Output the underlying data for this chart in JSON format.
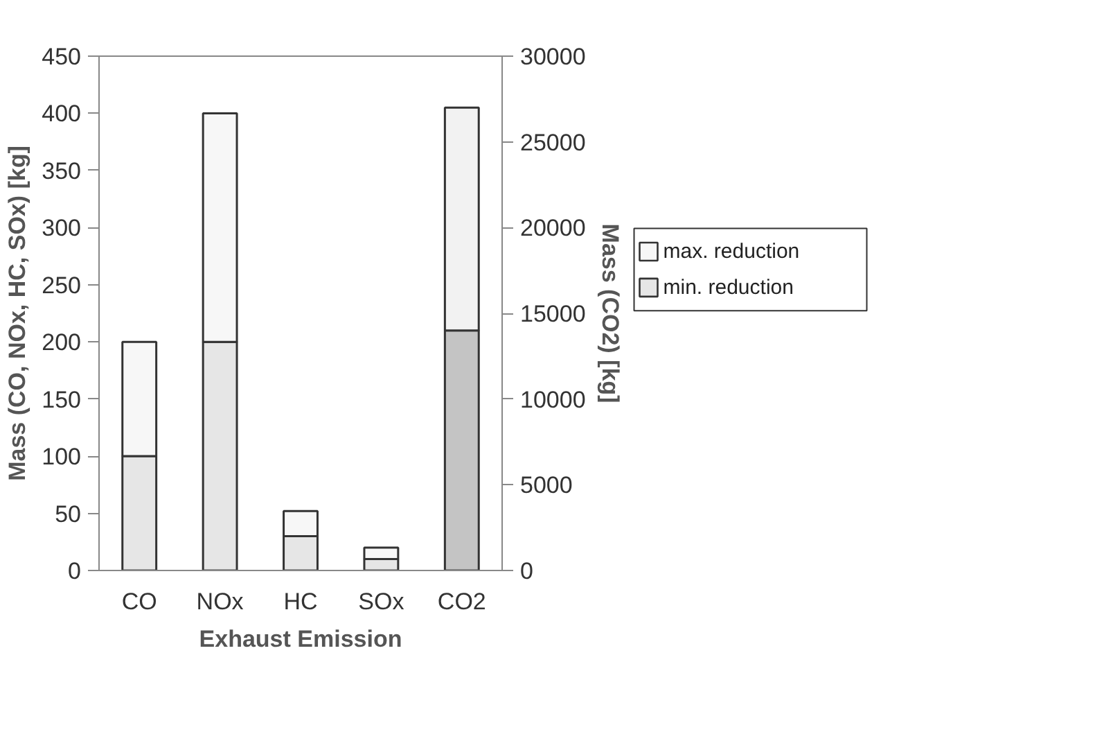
{
  "chart_data": {
    "type": "bar",
    "stacked": true,
    "xlabel": "Exhaust Emission",
    "ylabel": "Mass (CO, NOx, HC, SOx) [kg]",
    "y2label": "Mass (CO2) [kg]",
    "categories": [
      "CO",
      "NOx",
      "HC",
      "SOx",
      "CO2"
    ],
    "series": [
      {
        "name": "min. reduction",
        "color": "#e6e6e6",
        "values": [
          100,
          200,
          30,
          10,
          null
        ]
      },
      {
        "name": "max. reduction",
        "color": "#f7f7f7",
        "values": [
          100,
          200,
          22,
          10,
          null
        ]
      },
      {
        "color": "#c4c4c4",
        "axis": "y2",
        "values": [
          null,
          null,
          null,
          null,
          14000
        ]
      },
      {
        "color": "#f2f2f2",
        "axis": "y2",
        "values": [
          null,
          null,
          null,
          null,
          13000
        ]
      }
    ],
    "ylim": [
      0,
      450
    ],
    "yticks": [
      0,
      50,
      100,
      150,
      200,
      250,
      300,
      350,
      400,
      450
    ],
    "y2lim": [
      0,
      30000
    ],
    "y2ticks": [
      0,
      5000,
      10000,
      15000,
      20000,
      25000,
      30000
    ],
    "legend": "right"
  }
}
